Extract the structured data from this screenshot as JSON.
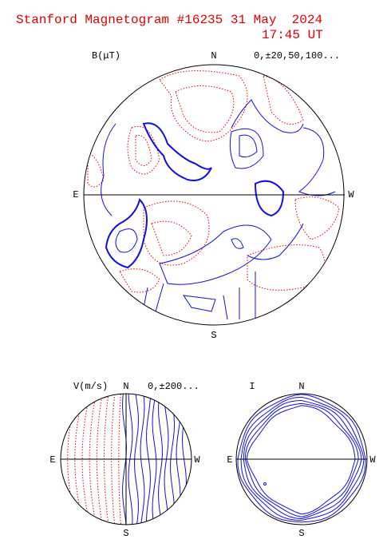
{
  "header": {
    "title": "Stanford Magnetogram #16235 31 May  2024",
    "time": "17:45 UT"
  },
  "panels": [
    {
      "label": "B(μT)",
      "north": "N",
      "scale": "0,±20,50,100...",
      "east": "E",
      "west": "W",
      "south": "S"
    },
    {
      "label": "V(m/s)",
      "north": "N",
      "scale": "0,±200...",
      "east": "E",
      "west": "W",
      "south": "S"
    },
    {
      "label": "I",
      "north": "N",
      "east": "E",
      "west": "W",
      "south": "S"
    }
  ]
}
